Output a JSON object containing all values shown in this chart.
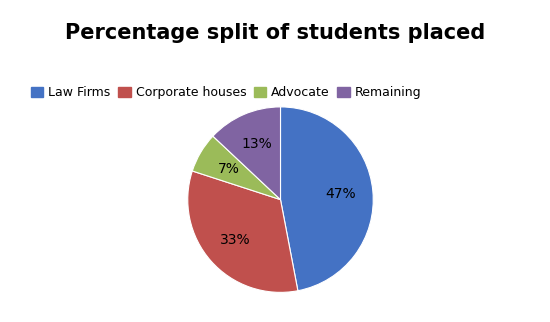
{
  "title": "Percentage split of students placed",
  "labels": [
    "Law Firms",
    "Corporate houses",
    "Advocate",
    "Remaining"
  ],
  "values": [
    47,
    33,
    7,
    13
  ],
  "colors": [
    "#4472C4",
    "#C0504D",
    "#9BBB59",
    "#8064A2"
  ],
  "title_fontsize": 15,
  "legend_fontsize": 9,
  "background_color": "#FFFFFF",
  "startangle": 90
}
